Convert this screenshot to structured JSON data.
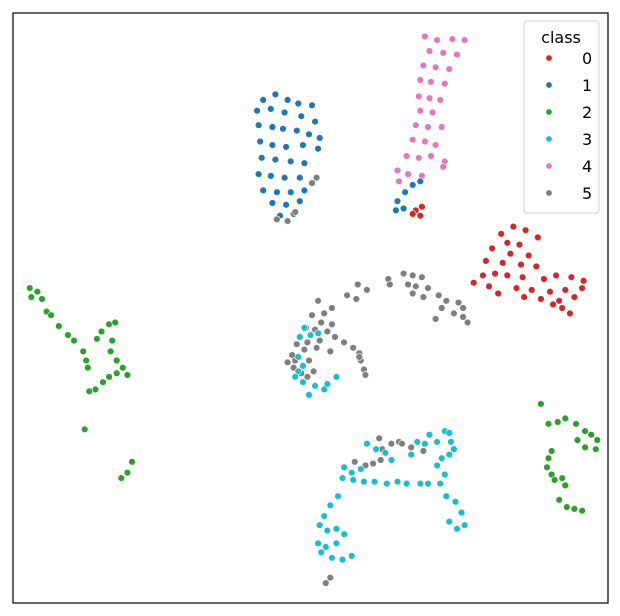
{
  "chart_data": {
    "type": "scatter",
    "title": "",
    "xlabel": "",
    "ylabel": "",
    "xlim": [
      -60,
      60
    ],
    "ylim": [
      -60,
      60
    ],
    "grid": false,
    "ticks_visible": false,
    "legend": {
      "title": "class",
      "placement": "top-right",
      "entries": [
        "0",
        "1",
        "2",
        "3",
        "4",
        "5"
      ]
    },
    "colors": {
      "0": "#d62728",
      "1": "#1f77b4",
      "2": "#2ca02c",
      "3": "#17becf",
      "4": "#e377c2",
      "5": "#7f7f7f"
    },
    "clusters": [
      {
        "class": "4",
        "points": [
          [
            25.0,
            51.5
          ],
          [
            29.0,
            50.5
          ],
          [
            34.0,
            50.8
          ],
          [
            38.0,
            50.5
          ],
          [
            26.5,
            47.5
          ],
          [
            31.0,
            47.0
          ],
          [
            35.5,
            46.5
          ],
          [
            24.5,
            43.5
          ],
          [
            28.5,
            43.0
          ],
          [
            33.0,
            42.5
          ],
          [
            23.5,
            39.5
          ],
          [
            27.0,
            39.0
          ],
          [
            31.5,
            38.5
          ],
          [
            23.0,
            35.0
          ],
          [
            26.5,
            34.5
          ],
          [
            30.0,
            34.0
          ],
          [
            23.5,
            31.0
          ],
          [
            27.5,
            30.5
          ],
          [
            22.0,
            27.0
          ],
          [
            26.0,
            26.5
          ],
          [
            30.5,
            26.5
          ],
          [
            21.0,
            23.0
          ],
          [
            25.0,
            22.5
          ],
          [
            28.5,
            21.5
          ],
          [
            19.0,
            18.5
          ],
          [
            23.0,
            18.0
          ],
          [
            27.0,
            18.5
          ],
          [
            31.5,
            17.0
          ],
          [
            16.0,
            14.5
          ],
          [
            19.5,
            13.5
          ],
          [
            24.0,
            13.0
          ],
          [
            31.0,
            15.5
          ],
          [
            16.5,
            11.5
          ]
        ]
      },
      {
        "class": "0",
        "points": [
          [
            22.0,
            3.5
          ],
          [
            24.0,
            4.5
          ],
          [
            21.0,
            2.5
          ],
          [
            23.5,
            2.0
          ],
          [
            50.0,
            -3.0
          ],
          [
            54.0,
            -1.0
          ],
          [
            58.0,
            -2.0
          ],
          [
            62.0,
            -4.0
          ],
          [
            52.0,
            -5.5
          ],
          [
            56.0,
            -6.0
          ],
          [
            47.0,
            -7.0
          ],
          [
            53.0,
            -8.5
          ],
          [
            59.0,
            -9.0
          ],
          [
            45.0,
            -10.5
          ],
          [
            50.5,
            -11.0
          ],
          [
            56.5,
            -11.5
          ],
          [
            61.5,
            -12.0
          ],
          [
            44.0,
            -14.5
          ],
          [
            48.0,
            -14.0
          ],
          [
            52.0,
            -14.5
          ],
          [
            57.0,
            -15.0
          ],
          [
            64.0,
            -15.5
          ],
          [
            68.0,
            -14.5
          ],
          [
            73.0,
            -15.0
          ],
          [
            77.0,
            -16.0
          ],
          [
            41.0,
            -16.5
          ],
          [
            46.0,
            -17.5
          ],
          [
            55.0,
            -18.0
          ],
          [
            60.0,
            -18.5
          ],
          [
            66.0,
            -19.0
          ],
          [
            71.0,
            -18.5
          ],
          [
            76.5,
            -18.0
          ],
          [
            49.0,
            -19.5
          ],
          [
            57.5,
            -20.5
          ],
          [
            63.0,
            -21.0
          ],
          [
            69.0,
            -21.5
          ],
          [
            74.0,
            -20.5
          ],
          [
            70.0,
            -23.5
          ],
          [
            72.5,
            -25.0
          ],
          [
            67.0,
            -22.5
          ]
        ]
      },
      {
        "class": "1",
        "points": [
          [
            -28.0,
            34.0
          ],
          [
            -24.0,
            35.5
          ],
          [
            -20.0,
            34.0
          ],
          [
            -16.5,
            33.0
          ],
          [
            -12.0,
            32.5
          ],
          [
            -30.0,
            31.0
          ],
          [
            -25.5,
            31.5
          ],
          [
            -21.0,
            30.5
          ],
          [
            -15.5,
            29.5
          ],
          [
            -11.0,
            28.0
          ],
          [
            -29.5,
            27.0
          ],
          [
            -25.0,
            26.5
          ],
          [
            -21.5,
            26.0
          ],
          [
            -17.0,
            25.5
          ],
          [
            -13.0,
            24.5
          ],
          [
            -9.5,
            23.5
          ],
          [
            -29.0,
            22.5
          ],
          [
            -25.0,
            21.5
          ],
          [
            -20.5,
            21.0
          ],
          [
            -15.0,
            21.5
          ],
          [
            -10.0,
            20.5
          ],
          [
            -28.5,
            18.0
          ],
          [
            -24.0,
            17.5
          ],
          [
            -19.0,
            17.0
          ],
          [
            -14.5,
            16.5
          ],
          [
            -29.5,
            13.5
          ],
          [
            -25.5,
            13.0
          ],
          [
            -21.0,
            12.5
          ],
          [
            -16.0,
            12.5
          ],
          [
            -28.0,
            9.0
          ],
          [
            -23.5,
            8.5
          ],
          [
            -19.0,
            8.5
          ],
          [
            -14.5,
            9.0
          ],
          [
            -25.0,
            5.5
          ],
          [
            -20.5,
            5.0
          ],
          [
            -16.0,
            6.0
          ],
          [
            -22.5,
            2.0
          ],
          [
            -18.0,
            2.5
          ],
          [
            18.5,
            8.5
          ],
          [
            21.0,
            10.5
          ],
          [
            23.5,
            11.5
          ],
          [
            16.0,
            6.0
          ],
          [
            15.5,
            3.5
          ],
          [
            18.0,
            4.0
          ]
        ]
      },
      {
        "class": "5",
        "points": [
          [
            -12.0,
            11.0
          ],
          [
            -10.5,
            12.5
          ],
          [
            -17.5,
            3.0
          ],
          [
            -23.5,
            1.0
          ],
          [
            -20.0,
            0.5
          ],
          [
            13.0,
            -15.5
          ],
          [
            18.0,
            -14.0
          ],
          [
            21.0,
            -14.5
          ],
          [
            24.0,
            -15.0
          ],
          [
            13.5,
            -17.0
          ],
          [
            19.5,
            -17.0
          ],
          [
            22.0,
            -17.5
          ],
          [
            26.0,
            -18.0
          ],
          [
            21.0,
            -19.5
          ],
          [
            24.5,
            -20.5
          ],
          [
            29.5,
            -20.0
          ],
          [
            32.0,
            -21.5
          ],
          [
            30.5,
            -23.5
          ],
          [
            36.0,
            -22.0
          ],
          [
            37.5,
            -23.5
          ],
          [
            34.5,
            -25.0
          ],
          [
            28.5,
            -26.5
          ],
          [
            37.5,
            -26.0
          ],
          [
            39.0,
            -27.5
          ],
          [
            3.0,
            -17.0
          ],
          [
            6.0,
            -18.5
          ],
          [
            -0.5,
            -20.0
          ],
          [
            2.5,
            -21.0
          ],
          [
            -10.0,
            -21.5
          ],
          [
            -5.5,
            -23.5
          ],
          [
            -8.0,
            -25.0
          ],
          [
            -12.0,
            -25.5
          ],
          [
            -9.0,
            -27.5
          ],
          [
            -5.5,
            -28.0
          ],
          [
            -14.0,
            -29.0
          ],
          [
            -11.0,
            -29.5
          ],
          [
            -7.0,
            -30.0
          ],
          [
            -4.5,
            -31.5
          ],
          [
            -9.5,
            -32.5
          ],
          [
            -13.5,
            -33.0
          ],
          [
            -17.0,
            -33.5
          ],
          [
            -14.5,
            -35.0
          ],
          [
            -10.5,
            -34.5
          ],
          [
            -6.0,
            -35.5
          ],
          [
            -1.5,
            -33.0
          ],
          [
            1.5,
            -34.5
          ],
          [
            3.5,
            -36.0
          ],
          [
            -18.5,
            -36.5
          ],
          [
            -20.0,
            -38.5
          ],
          [
            -17.5,
            -38.0
          ],
          [
            -13.0,
            -38.0
          ],
          [
            -18.0,
            -40.0
          ],
          [
            -15.5,
            -41.5
          ],
          [
            -11.5,
            -41.0
          ],
          [
            -13.5,
            -42.5
          ],
          [
            4.0,
            -38.0
          ],
          [
            5.0,
            -40.5
          ],
          [
            5.5,
            -42.0
          ],
          [
            3.5,
            -37.0
          ],
          [
            10.0,
            -59.5
          ],
          [
            11.0,
            -62.5
          ],
          [
            14.0,
            -61.0
          ],
          [
            16.5,
            -60.5
          ],
          [
            17.5,
            -61.0
          ],
          [
            20.5,
            -62.0
          ],
          [
            24.5,
            -63.0
          ],
          [
            2.0,
            -66.0
          ],
          [
            5.5,
            -67.0
          ],
          [
            8.0,
            -66.5
          ],
          [
            10.5,
            -65.5
          ],
          [
            -7.5,
            -99.5
          ],
          [
            -6.0,
            -98.0
          ]
        ]
      },
      {
        "class": "3",
        "points": [
          [
            -14.5,
            -29.0
          ],
          [
            -12.5,
            -31.0
          ],
          [
            -10.0,
            -30.5
          ],
          [
            -16.0,
            -31.5
          ],
          [
            -16.5,
            -37.0
          ],
          [
            -15.0,
            -39.5
          ],
          [
            -16.5,
            -41.0
          ],
          [
            -17.5,
            -42.5
          ],
          [
            -15.0,
            -44.0
          ],
          [
            -11.0,
            -45.0
          ],
          [
            -7.0,
            -44.5
          ],
          [
            -4.0,
            -42.5
          ],
          [
            -13.0,
            -47.5
          ],
          [
            -8.0,
            -46.0
          ],
          [
            6.0,
            -61.0
          ],
          [
            9.0,
            -62.5
          ],
          [
            12.0,
            -63.5
          ],
          [
            14.0,
            -65.5
          ],
          [
            20.5,
            -64.0
          ],
          [
            22.5,
            -60.5
          ],
          [
            25.0,
            -61.0
          ],
          [
            26.5,
            -58.5
          ],
          [
            29.0,
            -60.5
          ],
          [
            31.5,
            -57.5
          ],
          [
            33.0,
            -58.0
          ],
          [
            33.5,
            -60.5
          ],
          [
            34.5,
            -62.5
          ],
          [
            33.0,
            -64.0
          ],
          [
            30.5,
            -65.0
          ],
          [
            29.0,
            -67.0
          ],
          [
            31.5,
            -69.5
          ],
          [
            30.0,
            -72.0
          ],
          [
            26.0,
            -72.0
          ],
          [
            23.5,
            -72.0
          ],
          [
            19.0,
            -72.0
          ],
          [
            16.0,
            -71.5
          ],
          [
            12.5,
            -72.0
          ],
          [
            8.5,
            -71.5
          ],
          [
            5.0,
            -71.5
          ],
          [
            1.5,
            -71.0
          ],
          [
            -2.0,
            -70.5
          ],
          [
            1.0,
            -69.0
          ],
          [
            4.0,
            -68.0
          ],
          [
            -1.5,
            -67.5
          ],
          [
            32.0,
            -75.5
          ],
          [
            35.0,
            -77.0
          ],
          [
            37.0,
            -80.0
          ],
          [
            38.0,
            -83.5
          ],
          [
            35.5,
            -84.5
          ],
          [
            33.0,
            -82.5
          ],
          [
            -3.5,
            -75.5
          ],
          [
            -6.0,
            -78.0
          ],
          [
            -8.0,
            -81.0
          ],
          [
            -9.5,
            -83.5
          ],
          [
            -7.0,
            -85.0
          ],
          [
            -4.0,
            -84.5
          ],
          [
            -1.5,
            -86.0
          ],
          [
            -4.0,
            -88.5
          ],
          [
            -7.5,
            -89.5
          ],
          [
            -10.0,
            -88.5
          ],
          [
            -9.0,
            -91.0
          ],
          [
            -5.5,
            -92.5
          ],
          [
            -2.0,
            -93.0
          ],
          [
            1.0,
            -92.0
          ]
        ]
      },
      {
        "class": "2",
        "points": [
          [
            -104.5,
            -18.0
          ],
          [
            -102.0,
            -19.0
          ],
          [
            -104.0,
            -20.5
          ],
          [
            -100.5,
            -21.0
          ],
          [
            -99.0,
            -24.5
          ],
          [
            -97.5,
            -25.5
          ],
          [
            -95.0,
            -28.5
          ],
          [
            -92.0,
            -31.0
          ],
          [
            -90.0,
            -32.5
          ],
          [
            -87.0,
            -35.5
          ],
          [
            -86.0,
            -38.0
          ],
          [
            -85.5,
            -40.0
          ],
          [
            -82.5,
            -32.0
          ],
          [
            -81.0,
            -30.0
          ],
          [
            -78.5,
            -28.0
          ],
          [
            -76.5,
            -27.5
          ],
          [
            -77.5,
            -32.5
          ],
          [
            -78.0,
            -35.5
          ],
          [
            -76.0,
            -38.0
          ],
          [
            -74.0,
            -40.0
          ],
          [
            -72.5,
            -42.0
          ],
          [
            -76.0,
            -41.5
          ],
          [
            -78.5,
            -42.5
          ],
          [
            -80.5,
            -44.0
          ],
          [
            -83.0,
            -46.0
          ],
          [
            -85.0,
            -46.5
          ],
          [
            -86.5,
            -57.0
          ],
          [
            -72.5,
            -69.0
          ],
          [
            -74.5,
            -70.5
          ],
          [
            -71.0,
            -66.0
          ],
          [
            63.0,
            -50.0
          ],
          [
            65.5,
            -55.5
          ],
          [
            68.5,
            -55.0
          ],
          [
            71.0,
            -54.0
          ],
          [
            74.5,
            -55.5
          ],
          [
            77.5,
            -57.5
          ],
          [
            79.5,
            -58.5
          ],
          [
            81.5,
            -60.0
          ],
          [
            81.0,
            -62.5
          ],
          [
            77.5,
            -62.0
          ],
          [
            75.0,
            -60.0
          ],
          [
            66.5,
            -63.0
          ],
          [
            65.5,
            -65.0
          ],
          [
            65.0,
            -67.5
          ],
          [
            66.5,
            -69.5
          ],
          [
            67.5,
            -71.0
          ],
          [
            70.0,
            -70.5
          ],
          [
            71.0,
            -72.5
          ],
          [
            69.0,
            -76.5
          ],
          [
            71.5,
            -78.5
          ],
          [
            74.0,
            -79.0
          ],
          [
            76.5,
            -79.5
          ]
        ]
      }
    ]
  }
}
